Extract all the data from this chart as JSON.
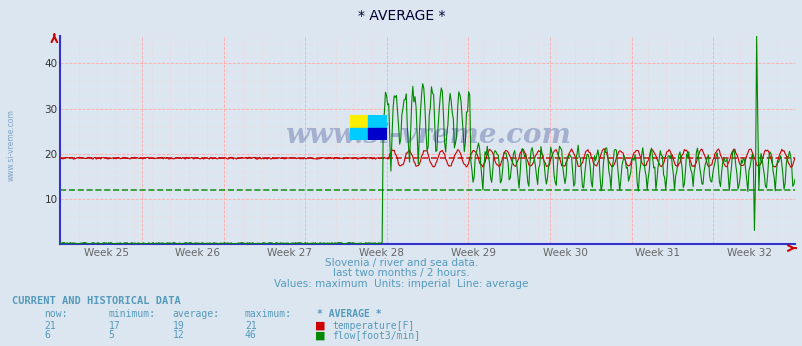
{
  "title": "* AVERAGE *",
  "subtitle1": "Slovenia / river and sea data.",
  "subtitle2": "last two months / 2 hours.",
  "subtitle3": "Values: maximum  Units: imperial  Line: average",
  "xlabel_weeks": [
    "Week 25",
    "Week 26",
    "Week 27",
    "Week 28",
    "Week 29",
    "Week 30",
    "Week 31",
    "Week 32"
  ],
  "ylim": [
    0,
    46
  ],
  "yticks": [
    10,
    20,
    30,
    40
  ],
  "temp_avg_line": 19,
  "flow_avg_line": 12,
  "temp_color": "#cc0000",
  "flow_color": "#008800",
  "background_color": "#dce6f0",
  "axis_color": "#3333cc",
  "grid_major_color": "#ffaaaa",
  "grid_minor_color": "#ffcccc",
  "text_color": "#5599bb",
  "title_color": "#000066",
  "watermark": "www.si-vreme.com",
  "n_points": 672,
  "table_header": "CURRENT AND HISTORICAL DATA",
  "table_cols": [
    "now:",
    "minimum:",
    "average:",
    "maximum:",
    "* AVERAGE *"
  ],
  "temp_row": [
    "21",
    "17",
    "19",
    "21",
    "temperature[F]"
  ],
  "flow_row": [
    "6",
    "5",
    "12",
    "46",
    "flow[foot3/min]"
  ],
  "logo_yellow": "#ffee00",
  "logo_cyan": "#00ccff",
  "logo_blue": "#0000cc"
}
